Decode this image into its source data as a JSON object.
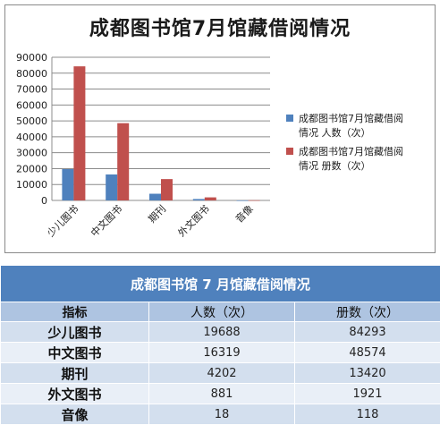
{
  "chart_data": {
    "type": "bar",
    "title": "成都图书馆7月馆藏借阅情况",
    "categories": [
      "少儿图书",
      "中文图书",
      "期刊",
      "外文图书",
      "音像"
    ],
    "series": [
      {
        "name": "成都图书馆7月馆藏借阅情况 人数（次）",
        "color": "#4f81bd",
        "values": [
          19688,
          16319,
          4202,
          881,
          18
        ]
      },
      {
        "name": "成都图书馆7月馆藏借阅情况 册数（次）",
        "color": "#c0504d",
        "values": [
          84293,
          48574,
          13420,
          1921,
          118
        ]
      }
    ],
    "ylim": [
      0,
      90000
    ],
    "yticks": [
      "0",
      "10000",
      "20000",
      "30000",
      "40000",
      "50000",
      "60000",
      "70000",
      "80000",
      "90000"
    ],
    "grid": true,
    "legend": "right",
    "legend_lines": [
      [
        "成都图书馆7月馆藏借阅",
        "情况 人数（次）"
      ],
      [
        "成都图书馆7月馆藏借阅",
        "情况 册数（次）"
      ]
    ]
  },
  "table": {
    "title": "成都图书馆 7 月馆藏借阅情况",
    "headers": [
      "指标",
      "人数（次）",
      "册数（次）"
    ],
    "rows": [
      [
        "少儿图书",
        "19688",
        "84293"
      ],
      [
        "中文图书",
        "16319",
        "48574"
      ],
      [
        "期刊",
        "4202",
        "13420"
      ],
      [
        "外文图书",
        "881",
        "1921"
      ],
      [
        "音像",
        "18",
        "118"
      ]
    ]
  }
}
